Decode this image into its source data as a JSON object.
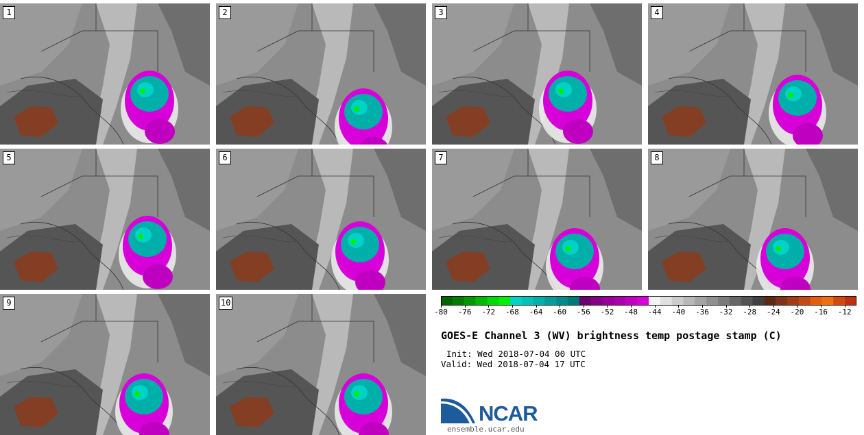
{
  "title": "GOES-E Channel 3 (WV) brightness temp postage stamp (C)",
  "init": "Init: Wed 2018-07-04 00 UTC",
  "valid": "Valid: Wed 2018-07-04 17 UTC",
  "logo": {
    "text": "NCAR",
    "url": "ensemble.ucar.edu"
  },
  "panels": [
    {
      "label": "1"
    },
    {
      "label": "2"
    },
    {
      "label": "3"
    },
    {
      "label": "4"
    },
    {
      "label": "5"
    },
    {
      "label": "6"
    },
    {
      "label": "7"
    },
    {
      "label": "8"
    },
    {
      "label": "9"
    },
    {
      "label": "10"
    }
  ],
  "colorbar": {
    "min": -80,
    "max": -10,
    "ticks": [
      "-80",
      "-76",
      "-72",
      "-68",
      "-64",
      "-60",
      "-56",
      "-52",
      "-48",
      "-44",
      "-40",
      "-36",
      "-32",
      "-28",
      "-24",
      "-20",
      "-16",
      "-12"
    ],
    "colors": [
      "#006400",
      "#007d00",
      "#009a00",
      "#00b800",
      "#00d800",
      "#00f000",
      "#00d2c8",
      "#00c0b8",
      "#00aeaa",
      "#009c9a",
      "#008a8a",
      "#007878",
      "#6e006e",
      "#820082",
      "#960096",
      "#aa00aa",
      "#c000c0",
      "#d800d8",
      "#f4f4f4",
      "#e0e0e0",
      "#cccccc",
      "#b8b8b8",
      "#a4a4a4",
      "#909090",
      "#7c7c7c",
      "#686868",
      "#545454",
      "#404040",
      "#5c2a14",
      "#7e3418",
      "#a03c18",
      "#c24a14",
      "#e06010",
      "#f07010",
      "#d04a10",
      "#c03010"
    ]
  },
  "icons": {
    "storm": "storm-cell-icon",
    "logo": "ncar-swoosh-icon"
  }
}
